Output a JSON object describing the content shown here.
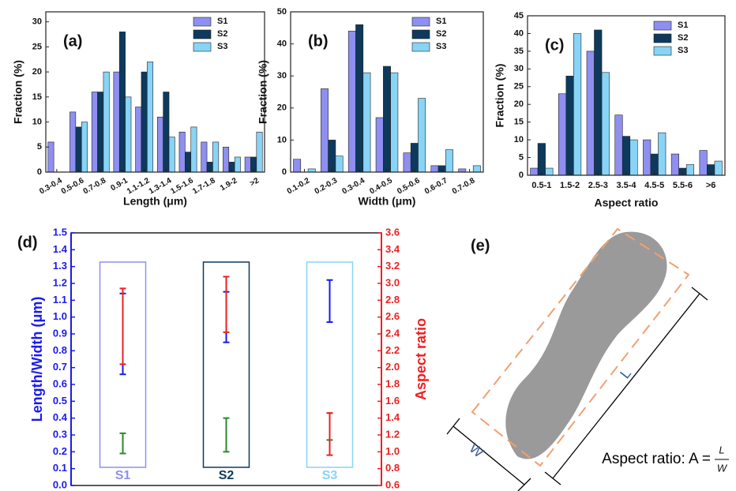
{
  "chart_data": [
    {
      "type": "bar",
      "panel_label": "(a)",
      "xlabel": "Length (μm)",
      "ylabel": "Fraction (%)",
      "categories": [
        "0.3-0.4",
        "0.5-0.6",
        "0.7-0.8",
        "0.9-1",
        "1.1-1.2",
        "1.3-1.4",
        "1.5-1.6",
        "1.7-1.8",
        "1.9-2",
        ">2"
      ],
      "series": [
        {
          "name": "S1",
          "color": "#8e8ff0",
          "values": [
            6,
            12,
            16,
            20,
            13,
            11,
            8,
            6,
            5,
            3
          ]
        },
        {
          "name": "S2",
          "color": "#0d3a5c",
          "values": [
            0,
            9,
            16,
            28,
            20,
            16,
            4,
            2,
            2,
            3
          ]
        },
        {
          "name": "S3",
          "color": "#88d4f6",
          "values": [
            0,
            10,
            20,
            15,
            22,
            7,
            9,
            6,
            3,
            8
          ]
        }
      ],
      "ylim": [
        0,
        32
      ],
      "yticks": [
        0,
        5,
        10,
        15,
        20,
        25,
        30
      ]
    },
    {
      "type": "bar",
      "panel_label": "(b)",
      "xlabel": "Width (μm)",
      "ylabel": "Fraction (%)",
      "categories": [
        "0.1-0.2",
        "0.2-0.3",
        "0.3-0.4",
        "0.4-0.5",
        "0.5-0.6",
        "0.6-0.7",
        "0.7-0.8"
      ],
      "series": [
        {
          "name": "S1",
          "color": "#8e8ff0",
          "values": [
            4,
            26,
            44,
            17,
            6,
            2,
            1
          ]
        },
        {
          "name": "S2",
          "color": "#0d3a5c",
          "values": [
            0,
            10,
            46,
            33,
            9,
            2,
            0
          ]
        },
        {
          "name": "S3",
          "color": "#88d4f6",
          "values": [
            1,
            5,
            31,
            31,
            23,
            7,
            2
          ]
        }
      ],
      "ylim": [
        0,
        50
      ],
      "yticks": [
        0,
        10,
        20,
        30,
        40,
        50
      ]
    },
    {
      "type": "bar",
      "panel_label": "(c)",
      "xlabel": "Aspect ratio",
      "ylabel": "Fraction (%)",
      "categories": [
        "0.5-1",
        "1.5-2",
        "2.5-3",
        "3.5-4",
        "4.5-5",
        "5.5-6",
        ">6"
      ],
      "series": [
        {
          "name": "S1",
          "color": "#8e8ff0",
          "values": [
            2,
            23,
            35,
            17,
            10,
            6,
            7
          ]
        },
        {
          "name": "S2",
          "color": "#0d3a5c",
          "values": [
            9,
            28,
            41,
            11,
            6,
            2,
            3
          ]
        },
        {
          "name": "S3",
          "color": "#88d4f6",
          "values": [
            2,
            40,
            29,
            10,
            12,
            3,
            4
          ]
        }
      ],
      "ylim": [
        0,
        45
      ],
      "yticks": [
        0,
        5,
        10,
        15,
        20,
        25,
        30,
        35,
        40,
        45
      ]
    },
    {
      "type": "errorbar",
      "panel_label": "(d)",
      "ylabel": "Length/Width (μm)",
      "y2label": "Aspect ratio",
      "categories": [
        "S1",
        "S2",
        "S3"
      ],
      "category_colors": [
        "#8e8ff0",
        "#0d3a5c",
        "#88d4f6"
      ],
      "series": [
        {
          "color": "#1a1aee",
          "low": [
            0.66,
            0.85,
            0.97
          ],
          "high": [
            1.14,
            1.15,
            1.22
          ]
        },
        {
          "color": "#2a8a2a",
          "low": [
            0.19,
            0.2,
            0.27
          ],
          "high": [
            0.31,
            0.4,
            0.43
          ]
        },
        {
          "color": "#ee2020",
          "axis": "y2",
          "low": [
            2.04,
            2.42,
            0.96
          ],
          "high": [
            2.94,
            3.08,
            1.46
          ]
        }
      ],
      "ylim": [
        0,
        1.5
      ],
      "yticks": [
        {
          "value": 0,
          "label": "0.0"
        },
        0.1,
        0.2,
        0.3,
        0.4,
        0.5,
        0.6,
        0.7,
        0.8,
        0.9,
        {
          "value": 1,
          "label": "1.0"
        },
        1.1,
        1.2,
        1.3,
        1.4,
        1.5
      ],
      "y2lim": [
        0.6,
        3.6
      ],
      "y2ticks": [
        0.6,
        0.8,
        {
          "value": 1,
          "label": "1.0"
        },
        1.2,
        1.4,
        1.6,
        1.8,
        {
          "value": 2,
          "label": "2.0"
        },
        2.2,
        2.4,
        2.6,
        2.8,
        {
          "value": 3,
          "label": "3.0"
        },
        3.2,
        3.4,
        3.6
      ],
      "y_color": "#1a1aee",
      "y2_color": "#ee2020"
    }
  ],
  "diagram": {
    "panel_label": "(e)",
    "length_label": "L",
    "width_label": "W",
    "formula_prefix": "Aspect ratio: A =",
    "numerator": "L",
    "denominator": "W"
  }
}
